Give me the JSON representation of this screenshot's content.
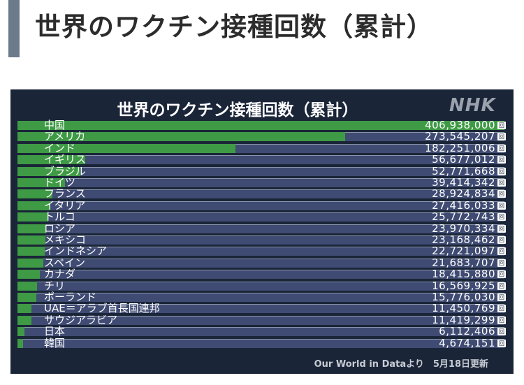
{
  "header": {
    "title": "世界のワクチン接種回数（累計）"
  },
  "panel": {
    "title": "世界のワクチン接種回数（累計）",
    "logo": "NHK",
    "source": "Our World in Dataより　5月18日更新",
    "unit": "回"
  },
  "colors": {
    "panel_bg": "#1a2538",
    "track": "#3f4b72",
    "bar": "#3e9a44",
    "header_accent": "#6b7b8c"
  },
  "chart_data": {
    "type": "bar",
    "orientation": "horizontal",
    "title": "世界のワクチン接種回数（累計）",
    "unit": "回",
    "xlim": [
      0,
      406938000
    ],
    "categories": [
      "中国",
      "アメリカ",
      "インド",
      "イギリス",
      "ブラジル",
      "ドイツ",
      "フランス",
      "イタリア",
      "トルコ",
      "ロシア",
      "メキシコ",
      "インドネシア",
      "スペイン",
      "カナダ",
      "チリ",
      "ポーランド",
      "UAE＝アラブ首長国連邦",
      "サウジアラビア",
      "日本",
      "韓国"
    ],
    "values": [
      406938000,
      273545207,
      182251006,
      56677012,
      52771668,
      39414342,
      28924834,
      27416033,
      25772743,
      23970334,
      23168462,
      22721097,
      21683707,
      18415880,
      16569925,
      15776030,
      11450769,
      11419299,
      6112406,
      4674151
    ],
    "value_labels": [
      "406,938,000",
      "273,545,207",
      "182,251,006",
      "56,677,012",
      "52,771,668",
      "39,414,342",
      "28,924,834",
      "27,416,033",
      "25,772,743",
      "23,970,334",
      "23,168,462",
      "22,721,097",
      "21,683,707",
      "18,415,880",
      "16,569,925",
      "15,776,030",
      "11,450,769",
      "11,419,299",
      "6,112,406",
      "4,674,151"
    ]
  }
}
